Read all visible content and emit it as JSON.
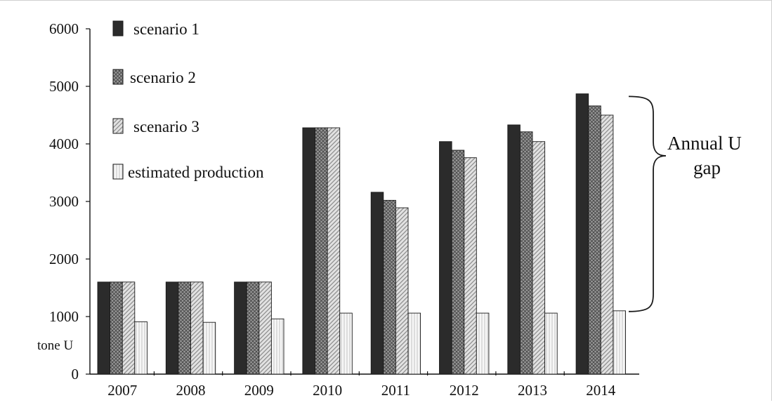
{
  "chart_data": {
    "type": "bar",
    "categories": [
      "2007",
      "2008",
      "2009",
      "2010",
      "2011",
      "2012",
      "2013",
      "2014"
    ],
    "series": [
      {
        "name": "scenario 1",
        "pattern": "solid-dark",
        "color": "#2b2b2b",
        "values": [
          1600,
          1600,
          1600,
          4280,
          3160,
          4040,
          4330,
          4870
        ]
      },
      {
        "name": "scenario 2",
        "pattern": "crosshatch",
        "color": "#8a8a8a",
        "values": [
          1600,
          1600,
          1600,
          4280,
          3020,
          3890,
          4210,
          4660
        ]
      },
      {
        "name": "scenario 3",
        "pattern": "diagonal",
        "color": "#c8c8c8",
        "values": [
          1600,
          1600,
          1600,
          4280,
          2890,
          3760,
          4040,
          4500
        ]
      },
      {
        "name": "estimated production",
        "pattern": "vertical-lines",
        "color": "#eeeeee",
        "values": [
          910,
          900,
          960,
          1060,
          1060,
          1060,
          1060,
          1100
        ]
      }
    ],
    "ylim": [
      0,
      6000
    ],
    "yticks": [
      "0",
      "1000",
      "2000",
      "3000",
      "4000",
      "5000",
      "6000"
    ],
    "ylabel": "tone U",
    "title": "",
    "xlabel": "",
    "legend_position": "top-left",
    "annotation": {
      "lines": [
        "Annual U",
        "gap"
      ],
      "from_value": 1100,
      "to_value": 4800
    }
  }
}
